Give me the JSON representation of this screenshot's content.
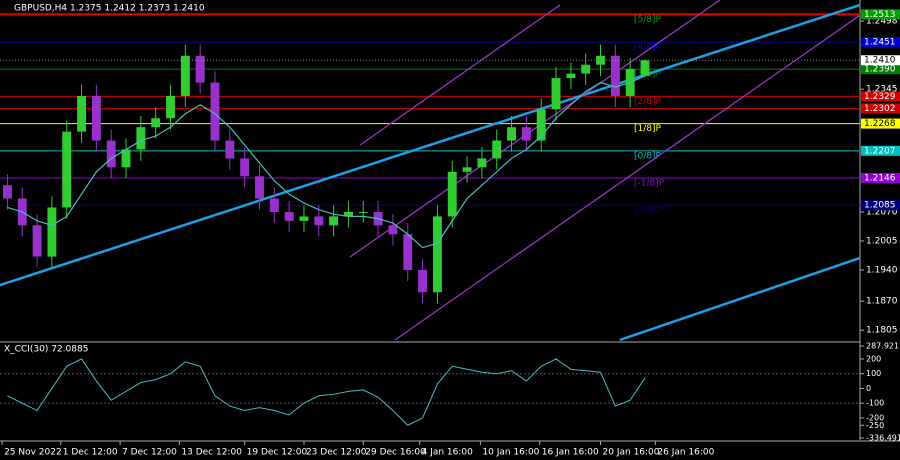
{
  "chart_data": {
    "type": "candlestick",
    "title": "GBPUSD,H4  1.2375 1.2412 1.2373 1.2410",
    "up_color": "#32cd32",
    "down_color": "#9932cc",
    "xlim": [
      -0.5,
      57.5
    ],
    "ylim": [
      1.1783,
      1.2545
    ],
    "xticks": [
      {
        "value": -0.36,
        "label": "25 Nov 2022"
      },
      {
        "value": 3.6,
        "label": "1 Dec 12:00"
      },
      {
        "value": 7.6,
        "label": "7 Dec 12:00"
      },
      {
        "value": 11.6,
        "label": "13 Dec 12:00"
      },
      {
        "value": 16,
        "label": "19 Dec 12:00"
      },
      {
        "value": 20,
        "label": "23 Dec 12:00"
      },
      {
        "value": 24,
        "label": "29 Dec 16:00"
      },
      {
        "value": 27.8,
        "label": "4 Jan 16:00"
      },
      {
        "value": 31.9,
        "label": "10 Jan 16:00"
      },
      {
        "value": 35.9,
        "label": "16 Jan 16:00"
      },
      {
        "value": 40,
        "label": "20 Jan 16:00"
      },
      {
        "value": 43.7,
        "label": "26 Jan 16:00"
      }
    ],
    "yticks": [
      {
        "value": 1.1805,
        "label": "1.1805"
      },
      {
        "value": 1.187,
        "label": "1.1870"
      },
      {
        "value": 1.194,
        "label": "1.1940"
      },
      {
        "value": 1.2005,
        "label": "1.2005"
      },
      {
        "value": 1.207,
        "label": "1.2070"
      },
      {
        "value": 1.2345,
        "label": "1.2345"
      },
      {
        "value": 1.2498,
        "label": "1.2498"
      }
    ],
    "open": [
      1.213,
      1.21,
      1.204,
      1.197,
      1.208,
      1.225,
      1.233,
      1.223,
      1.217,
      1.221,
      1.226,
      1.228,
      1.233,
      1.242,
      1.236,
      1.223,
      1.219,
      1.215,
      1.21,
      1.207,
      1.205,
      1.206,
      1.204,
      1.206,
      1.207,
      1.207,
      1.204,
      1.202,
      1.194,
      1.189,
      1.206,
      1.216,
      1.217,
      1.219,
      1.223,
      1.226,
      1.223,
      1.23,
      1.237,
      1.238,
      1.24,
      1.242,
      1.233,
      1.2375
    ],
    "high": [
      1.2155,
      1.2125,
      1.2065,
      1.2105,
      1.2275,
      1.2355,
      1.2355,
      1.2255,
      1.2235,
      1.2285,
      1.2305,
      1.2355,
      1.2445,
      1.2445,
      1.2385,
      1.2255,
      1.2215,
      1.2175,
      1.2125,
      1.2095,
      1.2085,
      1.2085,
      1.2085,
      1.2095,
      1.2095,
      1.2095,
      1.2065,
      1.2045,
      1.1965,
      1.2085,
      1.2185,
      1.2195,
      1.2215,
      1.2255,
      1.2285,
      1.2285,
      1.2325,
      1.2395,
      1.2405,
      1.2425,
      1.2445,
      1.2445,
      1.2415,
      1.2412
    ],
    "low": [
      1.2075,
      1.2015,
      1.1945,
      1.1945,
      1.2055,
      1.2225,
      1.2205,
      1.2145,
      1.2145,
      1.2185,
      1.2235,
      1.2255,
      1.2305,
      1.2335,
      1.2205,
      1.2165,
      1.2125,
      1.2075,
      1.2045,
      1.2025,
      1.2025,
      1.2015,
      1.2015,
      1.2035,
      1.2045,
      1.2015,
      1.1995,
      1.1915,
      1.1865,
      1.1865,
      1.2035,
      1.2135,
      1.2145,
      1.2165,
      1.2205,
      1.2205,
      1.2205,
      1.2275,
      1.2345,
      1.2355,
      1.2375,
      1.2305,
      1.2305,
      1.2373
    ],
    "close": [
      1.21,
      1.204,
      1.197,
      1.208,
      1.225,
      1.233,
      1.223,
      1.217,
      1.221,
      1.226,
      1.228,
      1.233,
      1.242,
      1.236,
      1.223,
      1.219,
      1.215,
      1.21,
      1.207,
      1.205,
      1.206,
      1.204,
      1.206,
      1.207,
      1.207,
      1.204,
      1.202,
      1.194,
      1.189,
      1.206,
      1.216,
      1.217,
      1.219,
      1.223,
      1.226,
      1.223,
      1.23,
      1.237,
      1.238,
      1.24,
      1.242,
      1.233,
      1.239,
      1.241
    ],
    "ma": {
      "color": "#40c0c0",
      "values": [
        1.208,
        1.207,
        1.205,
        1.204,
        1.206,
        1.211,
        1.216,
        1.219,
        1.221,
        1.223,
        1.224,
        1.226,
        1.229,
        1.231,
        1.229,
        1.226,
        1.222,
        1.218,
        1.214,
        1.211,
        1.209,
        1.2075,
        1.2065,
        1.206,
        1.206,
        1.2055,
        1.2045,
        1.202,
        1.199,
        1.2,
        1.205,
        1.21,
        1.213,
        1.216,
        1.219,
        1.221,
        1.224,
        1.228,
        1.231,
        1.234,
        1.236,
        1.235,
        1.236,
        1.2375
      ]
    },
    "current_price": {
      "value": 1.241,
      "label": "1.2410"
    },
    "levels": [
      {
        "value": 1.2513,
        "label": "1.2513",
        "color": "#00a000",
        "line_color": "#e00000",
        "murray": "[5/8]P"
      },
      {
        "value": 1.2451,
        "label": "1.2451",
        "color": "#0000cd",
        "murray": "[4/8]P"
      },
      {
        "value": 1.239,
        "label": "1.2390",
        "color": "#008000",
        "murray": "[3/8]P"
      },
      {
        "value": 1.2329,
        "label": "1.2329",
        "color": "#d00000",
        "murray": "[2/8]P"
      },
      {
        "value": 1.2302,
        "label": "1.2302",
        "color": "#d00000"
      },
      {
        "value": 1.2268,
        "label": "1.2268",
        "color": "#ffff00",
        "murray": "[1/8]P"
      },
      {
        "value": 1.2207,
        "label": "1.2207",
        "color": "#00c0c0",
        "murray": "[0/8]P"
      },
      {
        "value": 1.2146,
        "label": "1.2146",
        "color": "#9400d3",
        "murray": "[-1/8]P"
      },
      {
        "value": 1.2085,
        "label": "1.2085",
        "color": "#000080",
        "murray": "[-2/8]P"
      }
    ],
    "trendlines": [
      {
        "color": "#1ea0e6",
        "x": [
          -0.5,
          57.5
        ],
        "y": [
          1.1906,
          1.2534
        ]
      },
      {
        "color": "#1ea0e6",
        "x": [
          41.3,
          57.5
        ],
        "y": [
          1.1783,
          1.1967
        ]
      },
      {
        "color": "#9932cc",
        "x": [
          23.78,
          37.27
        ],
        "y": [
          1.222,
          1.2534
        ]
      },
      {
        "color": "#9932cc",
        "x": [
          23.1,
          48.06
        ],
        "y": [
          1.1969,
          1.2545
        ]
      },
      {
        "color": "#9932cc",
        "x": [
          26.14,
          57.5
        ],
        "y": [
          1.1783,
          1.2511
        ]
      }
    ],
    "cci": {
      "title": "X_CCI(30) 72.0885",
      "color": "#40c0c0",
      "ylim": [
        -336.4918,
        287.9211
      ],
      "yticks": [
        -336.4918,
        -250,
        -200,
        -100,
        0,
        100,
        200,
        287.9211
      ],
      "values": [
        -50,
        -100,
        -150,
        0,
        150,
        200,
        50,
        -80,
        -20,
        40,
        60,
        100,
        180,
        150,
        -50,
        -120,
        -150,
        -130,
        -150,
        -180,
        -100,
        -50,
        -40,
        -20,
        -10,
        -60,
        -150,
        -250,
        -200,
        30,
        150,
        130,
        110,
        100,
        120,
        50,
        150,
        200,
        130,
        120,
        110,
        -120,
        -80,
        72.0885
      ]
    }
  }
}
